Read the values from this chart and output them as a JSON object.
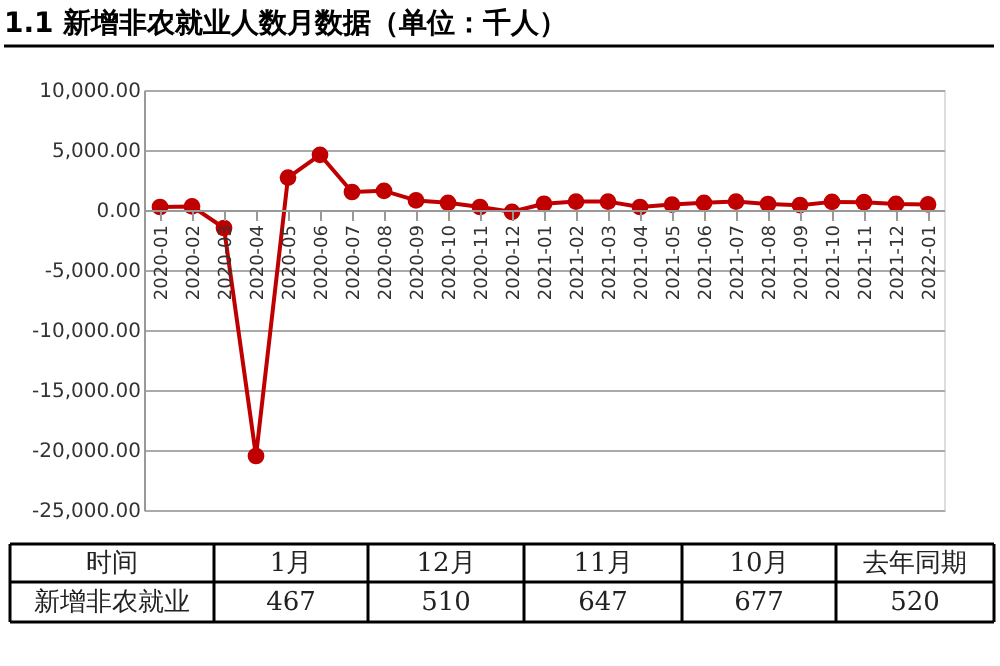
{
  "chart_data": {
    "type": "line",
    "title": "1.1 新增非农就业人数月数据（单位：千人）",
    "categories": [
      "2020-01",
      "2020-02",
      "2020-03",
      "2020-04",
      "2020-05",
      "2020-06",
      "2020-07",
      "2020-08",
      "2020-09",
      "2020-10",
      "2020-11",
      "2020-12",
      "2021-01",
      "2021-02",
      "2021-03",
      "2021-04",
      "2021-05",
      "2021-06",
      "2021-07",
      "2021-08",
      "2021-09",
      "2021-10",
      "2021-11",
      "2021-12",
      "2022-01"
    ],
    "series": [
      {
        "color": "#c00000",
        "values": [
          250,
          300,
          -1500,
          -20500,
          2700,
          4600,
          1500,
          1600,
          800,
          600,
          250,
          -150,
          520,
          700,
          700,
          250,
          450,
          600,
          700,
          500,
          400,
          677,
          647,
          510,
          467
        ]
      }
    ],
    "ylim": [
      -25000,
      10000
    ],
    "yticks": [
      {
        "value": -25000,
        "label": "-25,000.00"
      },
      {
        "value": -20000,
        "label": "-20,000.00"
      },
      {
        "value": -15000,
        "label": "-15,000.00"
      },
      {
        "value": -10000,
        "label": "-10,000.00"
      },
      {
        "value": -5000,
        "label": "-5,000.00"
      },
      {
        "value": 0,
        "label": "0.00"
      },
      {
        "value": 5000,
        "label": "5,000.00"
      },
      {
        "value": 10000,
        "label": "10,000.00"
      }
    ],
    "grid": "y",
    "marker": "circle",
    "line_style": "solid",
    "annotations": [
      "时间",
      "1月",
      "12月",
      "11月",
      "10月",
      "去年同期",
      "新增非农就业",
      "467",
      "510",
      "647",
      "677",
      "520"
    ]
  }
}
